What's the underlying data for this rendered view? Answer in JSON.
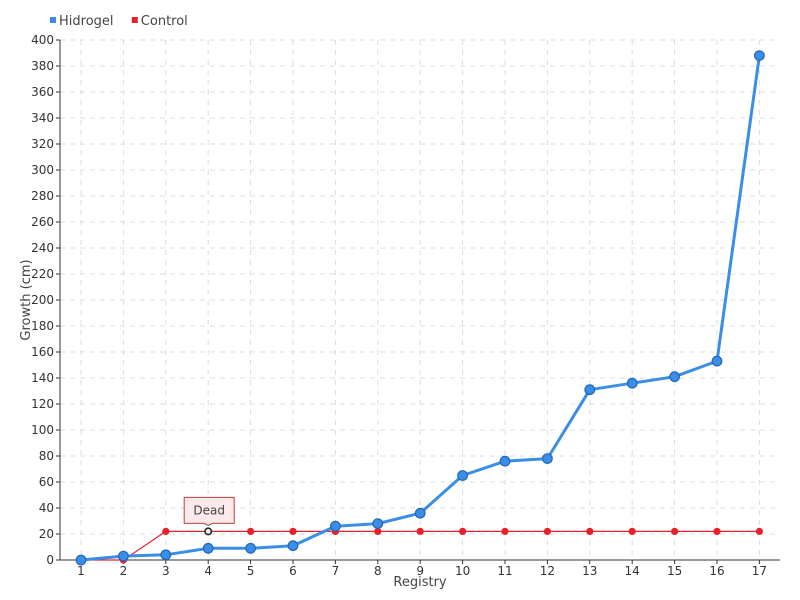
{
  "chart_data": {
    "type": "line",
    "xlabel": "Registry",
    "ylabel": "Growth (cm)",
    "categories": [
      "1",
      "2",
      "3",
      "4",
      "5",
      "6",
      "7",
      "8",
      "9",
      "10",
      "11",
      "12",
      "13",
      "14",
      "15",
      "16",
      "17"
    ],
    "ylim": [
      0,
      400
    ],
    "yticks": [
      0,
      20,
      40,
      60,
      80,
      100,
      120,
      140,
      160,
      180,
      200,
      220,
      240,
      260,
      280,
      300,
      320,
      340,
      360,
      380,
      400
    ],
    "grid": true,
    "legend_position": "top-left",
    "series": [
      {
        "name": "Hidrogel",
        "color": "#3a8ee6",
        "values": [
          0,
          3,
          4,
          9,
          9,
          11,
          26,
          28,
          36,
          65,
          76,
          78,
          131,
          136,
          141,
          153,
          388
        ]
      },
      {
        "name": "Control",
        "color": "#e8202a",
        "values": [
          0,
          0,
          22,
          22,
          22,
          22,
          22,
          22,
          22,
          22,
          22,
          22,
          22,
          22,
          22,
          22,
          22
        ]
      }
    ],
    "annotations": [
      {
        "text": "Dead",
        "series": "Control",
        "category": "4",
        "value": 22
      }
    ]
  }
}
